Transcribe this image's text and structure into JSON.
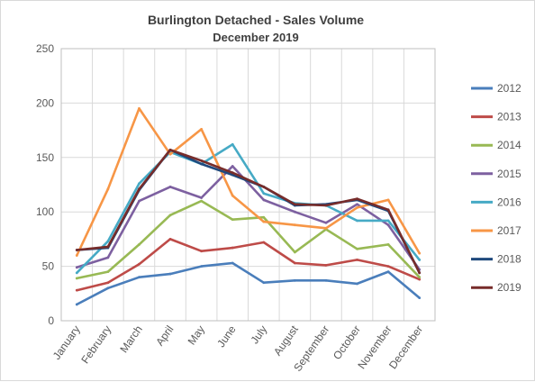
{
  "chart_data": {
    "type": "line",
    "title": "Burlington Detached - Sales Volume",
    "subtitle": "December 2019",
    "xlabel": "",
    "ylabel": "",
    "ylim": [
      0,
      250
    ],
    "yticks": [
      0,
      50,
      100,
      150,
      200,
      250
    ],
    "grid": true,
    "legend_position": "right",
    "categories": [
      "January",
      "February",
      "March",
      "April",
      "May",
      "June",
      "July",
      "August",
      "September",
      "October",
      "November",
      "December"
    ],
    "series": [
      {
        "name": "2012",
        "color": "#4a7ebb",
        "values": [
          15,
          30,
          40,
          43,
          50,
          53,
          35,
          37,
          37,
          34,
          45,
          21
        ]
      },
      {
        "name": "2013",
        "color": "#be4b48",
        "values": [
          28,
          35,
          52,
          75,
          64,
          67,
          72,
          53,
          51,
          56,
          50,
          38
        ]
      },
      {
        "name": "2014",
        "color": "#98b954",
        "values": [
          39,
          45,
          70,
          97,
          110,
          93,
          95,
          63,
          84,
          66,
          70,
          40
        ]
      },
      {
        "name": "2015",
        "color": "#7d60a0",
        "values": [
          49,
          58,
          110,
          123,
          113,
          142,
          111,
          100,
          90,
          107,
          88,
          47
        ]
      },
      {
        "name": "2016",
        "color": "#46aac5",
        "values": [
          44,
          73,
          126,
          155,
          144,
          162,
          117,
          108,
          106,
          92,
          92,
          56
        ]
      },
      {
        "name": "2017",
        "color": "#f79646",
        "values": [
          60,
          121,
          195,
          153,
          176,
          115,
          91,
          88,
          85,
          104,
          111,
          62
        ]
      },
      {
        "name": "2018",
        "color": "#1f497d",
        "values": [
          65,
          67,
          120,
          157,
          144,
          134,
          123,
          106,
          107,
          111,
          101,
          44
        ]
      },
      {
        "name": "2019",
        "color": "#772c2a",
        "values": [
          65,
          68,
          121,
          157,
          147,
          136,
          123,
          107,
          106,
          112,
          102,
          44
        ]
      }
    ]
  }
}
